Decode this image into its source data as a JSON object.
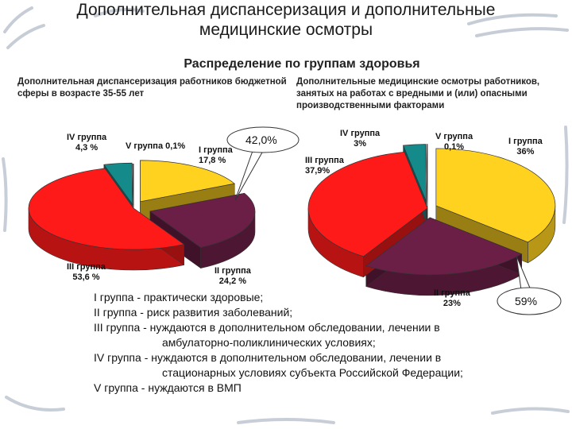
{
  "slide": {
    "title_line1": "Дополнительная диспансеризация и дополнительные",
    "title_line2": "медицинские осмотры",
    "subtitle": "Распределение по группам здоровья"
  },
  "chart_data": [
    {
      "type": "pie",
      "title": "Дополнительная диспансеризация работников бюджетной сферы в возрасте 35-55 лет",
      "categories": [
        "I группа",
        "II группа",
        "III группа",
        "IV группа",
        "V группа"
      ],
      "values": [
        17.8,
        24.2,
        53.6,
        4.3,
        0.1
      ],
      "value_labels": [
        "17,8 %",
        "24,2 %",
        "53,6 %",
        "4,3 %",
        "0,1%"
      ],
      "colors": [
        "#ffd21f",
        "#6b1e46",
        "#ff1a1a",
        "#158a8a",
        "#cfe0ff"
      ],
      "callout": "42,0%"
    },
    {
      "type": "pie",
      "title": "Дополнительные медицинские осмотры работников, занятых на работах с вредными и (или) опасными производственными факторами",
      "categories": [
        "I группа",
        "II группа",
        "III группа",
        "IV группа",
        "V группа"
      ],
      "values": [
        36,
        23,
        37.9,
        3,
        0.1
      ],
      "value_labels": [
        "36%",
        "23%",
        "37,9%",
        "3%",
        "0,1%"
      ],
      "colors": [
        "#ffd21f",
        "#6b1e46",
        "#ff1a1a",
        "#158a8a",
        "#cfe0ff"
      ],
      "callout": "59%"
    }
  ],
  "legend": [
    {
      "text": "I группа - практически здоровые;"
    },
    {
      "text": "II группа - риск развития заболеваний;"
    },
    {
      "text": "III группа - нуждаются в дополнительном обследовании, лечении в"
    },
    {
      "text": "амбулаторно-поликлинических условиях;"
    },
    {
      "text": "IV группа - нуждаются в дополнительном обследовании, лечении в"
    },
    {
      "text": "стационарных условиях субъекта Российской Федерации;"
    },
    {
      "text": "V группа - нуждаются в ВМП"
    }
  ]
}
